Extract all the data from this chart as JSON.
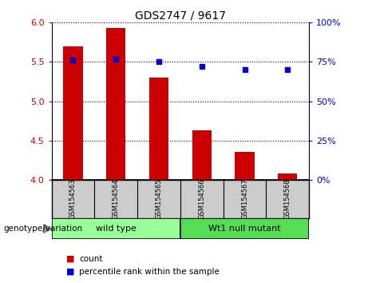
{
  "title": "GDS2747 / 9617",
  "samples": [
    "GSM154563",
    "GSM154564",
    "GSM154565",
    "GSM154566",
    "GSM154567",
    "GSM154568"
  ],
  "bar_values": [
    5.7,
    5.93,
    5.3,
    4.63,
    4.35,
    4.08
  ],
  "percentile_values": [
    76,
    77,
    75,
    72,
    70,
    70
  ],
  "bar_bottom": 4.0,
  "ylim_left": [
    4.0,
    6.0
  ],
  "ylim_right": [
    0,
    100
  ],
  "yticks_left": [
    4.0,
    4.5,
    5.0,
    5.5,
    6.0
  ],
  "yticks_right": [
    0,
    25,
    50,
    75,
    100
  ],
  "bar_color": "#cc0000",
  "dot_color": "#0000cc",
  "groups": [
    {
      "label": "wild type",
      "indices": [
        0,
        1,
        2
      ],
      "color": "#99ff99"
    },
    {
      "label": "Wt1 null mutant",
      "indices": [
        3,
        4,
        5
      ],
      "color": "#55dd55"
    }
  ],
  "group_label": "genotype/variation",
  "legend_bar_label": "count",
  "legend_dot_label": "percentile rank within the sample",
  "bg_color": "#ffffff",
  "tick_label_color_left": "#cc0000",
  "tick_label_color_right": "#0000cc",
  "sample_box_color": "#cccccc",
  "title_fontsize": 10,
  "ytick_fontsize": 8,
  "sample_fontsize": 6,
  "group_fontsize": 8,
  "legend_fontsize": 7.5,
  "genotype_label_fontsize": 7.5
}
